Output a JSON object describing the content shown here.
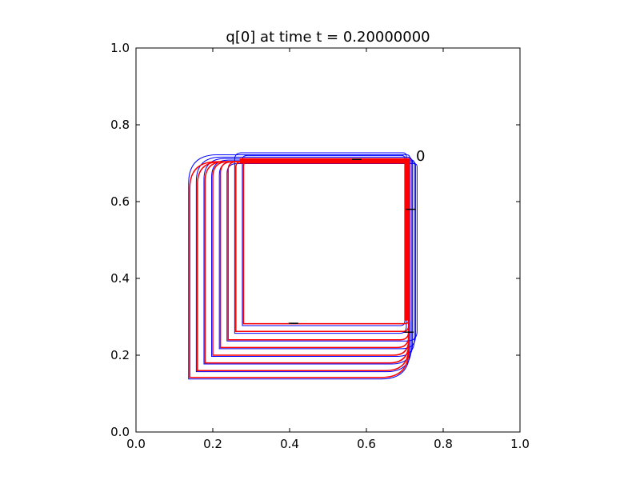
{
  "chart_data": {
    "type": "line",
    "title": "q[0] at time t =     0.20000000",
    "xlabel": "",
    "ylabel": "",
    "xlim": [
      0.0,
      1.0
    ],
    "ylim": [
      0.0,
      1.0
    ],
    "xticks": [
      "0.0",
      "0.2",
      "0.4",
      "0.6",
      "0.8",
      "1.0"
    ],
    "yticks": [
      "0.0",
      "0.2",
      "0.4",
      "0.6",
      "0.8",
      "1.0"
    ],
    "grid": false,
    "annotations": [
      {
        "text": "0",
        "x": 0.725,
        "y": 0.71
      }
    ],
    "colors": {
      "red_contours": "#ff0000",
      "blue_contours": "#0000ff",
      "black_segments": "#000000"
    },
    "red_contours": [
      {
        "x1": 0.14,
        "y1": 0.142,
        "x2": 0.71,
        "y2": 0.704,
        "corner": 0.07
      },
      {
        "x1": 0.16,
        "y1": 0.16,
        "x2": 0.71,
        "y2": 0.704,
        "corner": 0.06
      },
      {
        "x1": 0.18,
        "y1": 0.18,
        "x2": 0.71,
        "y2": 0.704,
        "corner": 0.05
      },
      {
        "x1": 0.2,
        "y1": 0.2,
        "x2": 0.71,
        "y2": 0.704,
        "corner": 0.04
      },
      {
        "x1": 0.22,
        "y1": 0.22,
        "x2": 0.71,
        "y2": 0.704,
        "corner": 0.03
      },
      {
        "x1": 0.24,
        "y1": 0.24,
        "x2": 0.71,
        "y2": 0.704,
        "corner": 0.022
      },
      {
        "x1": 0.26,
        "y1": 0.262,
        "x2": 0.71,
        "y2": 0.704,
        "corner": 0.015
      },
      {
        "x1": 0.28,
        "y1": 0.282,
        "x2": 0.71,
        "y2": 0.704,
        "corner": 0.01
      }
    ],
    "blue_contours": [
      {
        "x1": 0.137,
        "y1": 0.138,
        "x2": 0.713,
        "y2": 0.722,
        "corner": 0.074
      },
      {
        "x1": 0.157,
        "y1": 0.157,
        "x2": 0.717,
        "y2": 0.716,
        "corner": 0.064
      },
      {
        "x1": 0.177,
        "y1": 0.177,
        "x2": 0.72,
        "y2": 0.712,
        "corner": 0.054
      },
      {
        "x1": 0.197,
        "y1": 0.197,
        "x2": 0.725,
        "y2": 0.708,
        "corner": 0.044
      },
      {
        "x1": 0.217,
        "y1": 0.217,
        "x2": 0.728,
        "y2": 0.703,
        "corner": 0.034
      },
      {
        "x1": 0.237,
        "y1": 0.237,
        "x2": 0.732,
        "y2": 0.699,
        "corner": 0.026
      },
      {
        "x1": 0.257,
        "y1": 0.257,
        "x2": 0.704,
        "y2": 0.727,
        "corner": 0.018
      },
      {
        "x1": 0.277,
        "y1": 0.277,
        "x2": 0.7,
        "y2": 0.72,
        "corner": 0.012
      }
    ],
    "black_segments": [
      {
        "x": 0.575,
        "y": 0.71
      },
      {
        "x": 0.715,
        "y": 0.58
      },
      {
        "x": 0.41,
        "y": 0.283
      },
      {
        "x": 0.71,
        "y": 0.26
      }
    ]
  }
}
